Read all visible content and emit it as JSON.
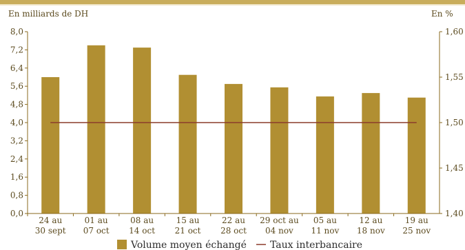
{
  "colors": {
    "bar": "#b18f32",
    "line": "#8a3b2a",
    "axis": "#8a6a1e",
    "band": "#c9ad5c",
    "text": "#5b4a1e"
  },
  "chart_data": {
    "type": "bar",
    "ylabel": "En milliards de DH",
    "y2label": "En %",
    "categories": [
      [
        "24 au",
        "30 sept"
      ],
      [
        "01 au",
        "07 oct"
      ],
      [
        "08 au",
        "14 oct"
      ],
      [
        "15 au",
        "21 oct"
      ],
      [
        "22 au",
        "28 oct"
      ],
      [
        "29 oct au",
        "04 nov"
      ],
      [
        "05 au",
        "11 nov"
      ],
      [
        "12 au",
        "18 nov"
      ],
      [
        "19 au",
        "25 nov"
      ]
    ],
    "series": [
      {
        "name": "Volume moyen échangé",
        "type": "bar",
        "axis": "left",
        "values": [
          6.0,
          7.4,
          7.3,
          6.1,
          5.7,
          5.55,
          5.15,
          5.3,
          5.1
        ]
      },
      {
        "name": "Taux interbancaire",
        "type": "line",
        "axis": "right",
        "values": [
          1.5,
          1.5,
          1.5,
          1.5,
          1.5,
          1.5,
          1.5,
          1.5,
          1.5
        ]
      }
    ],
    "ylim": [
      0,
      8.0
    ],
    "yticks": [
      "0,0",
      "0,8",
      "1,6",
      "2,4",
      "3,2",
      "4,0",
      "4,8",
      "5,6",
      "6,4",
      "7,2",
      "8,0"
    ],
    "y2lim": [
      1.4,
      1.6
    ],
    "y2ticks": [
      "1,40",
      "1,45",
      "1,50",
      "1,55",
      "1,60"
    ],
    "grid": false,
    "legend_position": "bottom"
  }
}
